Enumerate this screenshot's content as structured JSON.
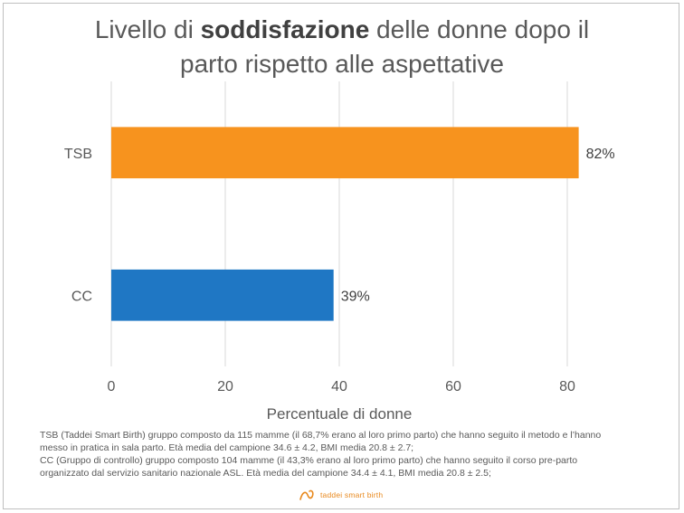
{
  "title": {
    "prefix": "Livello di ",
    "bold": "soddisfazione",
    "suffix": " delle donne dopo il",
    "line2": "parto rispetto alle aspettative"
  },
  "chart_data": {
    "type": "bar",
    "orientation": "horizontal",
    "categories": [
      "TSB",
      "CC"
    ],
    "values": [
      82,
      39
    ],
    "data_labels": [
      "82%",
      "39%"
    ],
    "colors": [
      "#f7931e",
      "#1f77c4"
    ],
    "xlabel": "Percentuale di donne",
    "ylabel": "",
    "xlim": [
      0,
      80
    ],
    "x_ticks": [
      0,
      20,
      40,
      60,
      80
    ],
    "grid": "vertical",
    "legend": "none"
  },
  "caption": {
    "line1": "TSB (Taddei Smart Birth) gruppo composto da 115 mamme (il 68,7% erano al loro primo parto) che hanno seguito il metodo e l’hanno",
    "line2": "messo in pratica in sala parto. Età media del campione 34.6 ± 4.2, BMI media 20.8 ± 2.7;",
    "line3": "CC (Gruppo di controllo) gruppo composto 104 mamme (il 43,3% erano al loro primo parto) che hanno seguito il corso pre-parto",
    "line4": "organizzato dal servizio sanitario nazionale ASL. Età media del campione 34.4 ± 4.1, BMI media 20.8 ± 2.5;"
  },
  "logo": {
    "text": "taddei smart birth",
    "color": "#e8891e"
  }
}
